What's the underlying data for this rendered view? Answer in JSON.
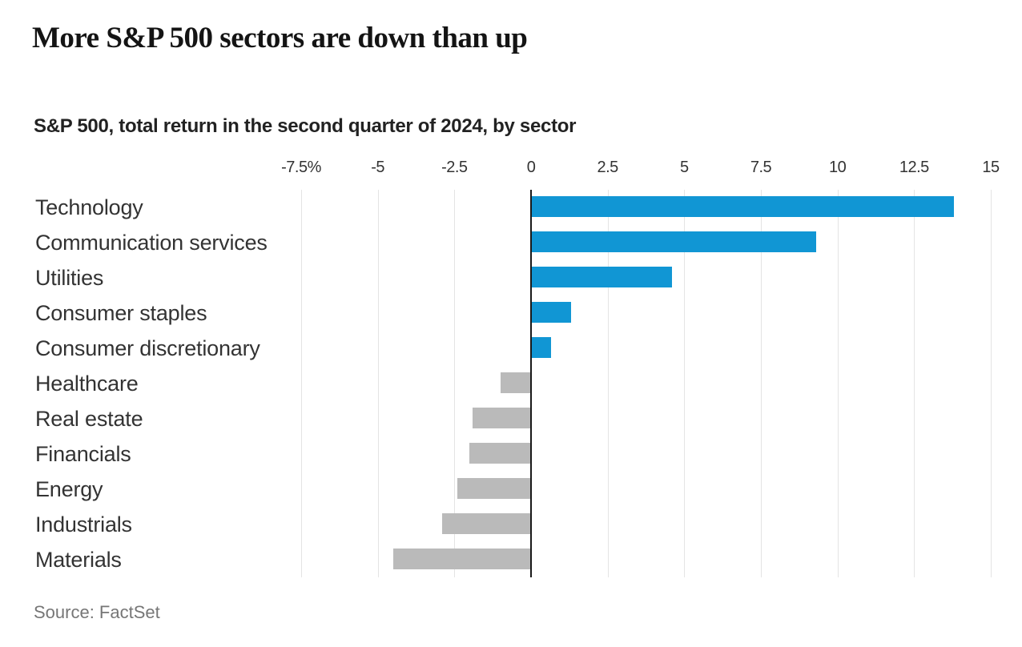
{
  "header": {
    "title": "More S&P 500 sectors are down than up"
  },
  "chart_data": {
    "type": "bar",
    "orientation": "horizontal",
    "title": "More S&P 500 sectors are down than up",
    "subtitle": "S&P 500, total return in the second quarter of 2024, by sector",
    "categories": [
      "Technology",
      "Communication services",
      "Utilities",
      "Consumer staples",
      "Consumer discretionary",
      "Healthcare",
      "Real estate",
      "Financials",
      "Energy",
      "Industrials",
      "Materials"
    ],
    "values": [
      13.8,
      9.3,
      4.6,
      1.3,
      0.65,
      -1.0,
      -1.9,
      -2.0,
      -2.4,
      -2.9,
      -4.5
    ],
    "unit": "percent",
    "xlabel": "",
    "ylabel": "",
    "xlim": [
      -7.5,
      15
    ],
    "x_ticks": [
      {
        "value": -7.5,
        "label": "-7.5%"
      },
      {
        "value": -5,
        "label": "-5"
      },
      {
        "value": -2.5,
        "label": "-2.5"
      },
      {
        "value": 0,
        "label": "0"
      },
      {
        "value": 2.5,
        "label": "2.5"
      },
      {
        "value": 5,
        "label": "5"
      },
      {
        "value": 7.5,
        "label": "7.5"
      },
      {
        "value": 10,
        "label": "10"
      },
      {
        "value": 12.5,
        "label": "12.5"
      },
      {
        "value": 15,
        "label": "15"
      }
    ],
    "grid": true,
    "legend": "none",
    "colors": {
      "positive": "#1196d4",
      "negative": "#bababa",
      "gridline": "#e4e4e4",
      "zero_line": "#1a1a1a"
    }
  },
  "footer": {
    "source": "Source: FactSet"
  }
}
